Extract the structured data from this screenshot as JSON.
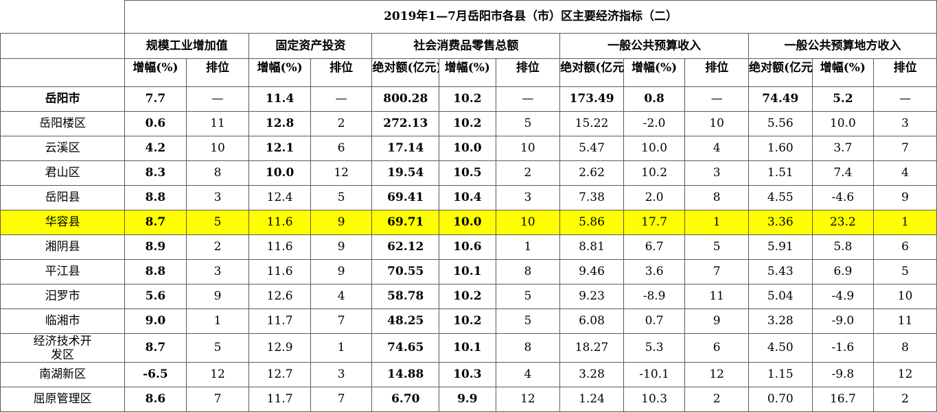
{
  "title": "2019年1—7月岳阳市各县（市）区主要经济指标（二）",
  "groups": {
    "industry": "规模工业增加值",
    "fixed_assets": "固定资产投资",
    "retail": "社会消费品零售总额",
    "budget": "一般公共预算收入",
    "local_budget": "一般公共预算地方收入"
  },
  "subheaders": {
    "growth": "增幅(%)",
    "rank": "排位",
    "absolute": "绝对额(亿元)"
  },
  "highlight_color": "#ffff00",
  "rows": [
    {
      "name": "岳阳市",
      "ind_g": "7.7",
      "ind_r": "—",
      "fa_g": "11.4",
      "fa_r": "—",
      "rt_a": "800.28",
      "rt_g": "10.2",
      "rt_r": "—",
      "bg_a": "173.49",
      "bg_g": "0.8",
      "bg_r": "—",
      "lb_a": "74.49",
      "lb_g": "5.2",
      "lb_r": "—"
    },
    {
      "name": "岳阳楼区",
      "ind_g": "0.6",
      "ind_r": "11",
      "fa_g": "12.8",
      "fa_r": "2",
      "rt_a": "272.13",
      "rt_g": "10.2",
      "rt_r": "5",
      "bg_a": "15.22",
      "bg_g": "-2.0",
      "bg_r": "10",
      "lb_a": "5.56",
      "lb_g": "10.0",
      "lb_r": "3"
    },
    {
      "name": "云溪区",
      "ind_g": "4.2",
      "ind_r": "10",
      "fa_g": "12.1",
      "fa_r": "6",
      "rt_a": "17.14",
      "rt_g": "10.0",
      "rt_r": "10",
      "bg_a": "5.47",
      "bg_g": "10.0",
      "bg_r": "4",
      "lb_a": "1.60",
      "lb_g": "3.7",
      "lb_r": "7"
    },
    {
      "name": "君山区",
      "ind_g": "8.3",
      "ind_r": "8",
      "fa_g": "10.0",
      "fa_r": "12",
      "rt_a": "19.54",
      "rt_g": "10.5",
      "rt_r": "2",
      "bg_a": "2.62",
      "bg_g": "10.2",
      "bg_r": "3",
      "lb_a": "1.51",
      "lb_g": "7.4",
      "lb_r": "4"
    },
    {
      "name": "岳阳县",
      "ind_g": "8.8",
      "ind_r": "3",
      "fa_g": "12.4",
      "fa_r": "5",
      "rt_a": "69.41",
      "rt_g": "10.4",
      "rt_r": "3",
      "bg_a": "7.38",
      "bg_g": "2.0",
      "bg_r": "8",
      "lb_a": "4.55",
      "lb_g": "-4.6",
      "lb_r": "9"
    },
    {
      "name": "华容县",
      "ind_g": "8.7",
      "ind_r": "5",
      "fa_g": "11.6",
      "fa_r": "9",
      "rt_a": "69.71",
      "rt_g": "10.0",
      "rt_r": "10",
      "bg_a": "5.86",
      "bg_g": "17.7",
      "bg_r": "1",
      "lb_a": "3.36",
      "lb_g": "23.2",
      "lb_r": "1"
    },
    {
      "name": "湘阴县",
      "ind_g": "8.9",
      "ind_r": "2",
      "fa_g": "11.6",
      "fa_r": "9",
      "rt_a": "62.12",
      "rt_g": "10.6",
      "rt_r": "1",
      "bg_a": "8.81",
      "bg_g": "6.7",
      "bg_r": "5",
      "lb_a": "5.91",
      "lb_g": "5.8",
      "lb_r": "6"
    },
    {
      "name": "平江县",
      "ind_g": "8.8",
      "ind_r": "3",
      "fa_g": "11.6",
      "fa_r": "9",
      "rt_a": "70.55",
      "rt_g": "10.1",
      "rt_r": "8",
      "bg_a": "9.46",
      "bg_g": "3.6",
      "bg_r": "7",
      "lb_a": "5.43",
      "lb_g": "6.9",
      "lb_r": "5"
    },
    {
      "name": "汨罗市",
      "ind_g": "5.6",
      "ind_r": "9",
      "fa_g": "12.6",
      "fa_r": "4",
      "rt_a": "58.78",
      "rt_g": "10.2",
      "rt_r": "5",
      "bg_a": "9.23",
      "bg_g": "-8.9",
      "bg_r": "11",
      "lb_a": "5.04",
      "lb_g": "-4.9",
      "lb_r": "10"
    },
    {
      "name": "临湘市",
      "ind_g": "9.0",
      "ind_r": "1",
      "fa_g": "11.7",
      "fa_r": "7",
      "rt_a": "48.25",
      "rt_g": "10.2",
      "rt_r": "5",
      "bg_a": "6.08",
      "bg_g": "0.7",
      "bg_r": "9",
      "lb_a": "3.28",
      "lb_g": "-9.0",
      "lb_r": "11"
    },
    {
      "name": "经济技术开发区",
      "ind_g": "8.7",
      "ind_r": "5",
      "fa_g": "12.9",
      "fa_r": "1",
      "rt_a": "74.65",
      "rt_g": "10.1",
      "rt_r": "8",
      "bg_a": "18.27",
      "bg_g": "5.3",
      "bg_r": "6",
      "lb_a": "4.50",
      "lb_g": "-1.6",
      "lb_r": "8"
    },
    {
      "name": "南湖新区",
      "ind_g": "-6.5",
      "ind_r": "12",
      "fa_g": "12.7",
      "fa_r": "3",
      "rt_a": "14.88",
      "rt_g": "10.3",
      "rt_r": "4",
      "bg_a": "3.28",
      "bg_g": "-10.1",
      "bg_r": "12",
      "lb_a": "1.15",
      "lb_g": "-9.8",
      "lb_r": "12"
    },
    {
      "name": "屈原管理区",
      "ind_g": "8.6",
      "ind_r": "7",
      "fa_g": "11.7",
      "fa_r": "7",
      "rt_a": "6.70",
      "rt_g": "9.9",
      "rt_r": "12",
      "bg_a": "1.24",
      "bg_g": "10.3",
      "bg_r": "2",
      "lb_a": "0.70",
      "lb_g": "16.7",
      "lb_r": "2"
    }
  ]
}
